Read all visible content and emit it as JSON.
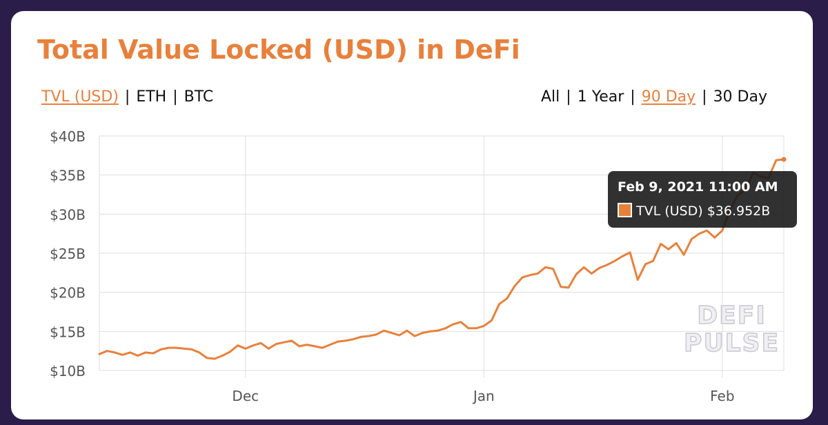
{
  "header": {
    "title": "Total Value Locked (USD) in DeFi"
  },
  "metric_options": [
    "TVL (USD)",
    "ETH",
    "BTC"
  ],
  "metric_active": 0,
  "range_options": [
    "All",
    "1 Year",
    "90 Day",
    "30 Day"
  ],
  "range_active": 2,
  "separator": "|",
  "tooltip": {
    "title": "Feb 9, 2021 11:00 AM",
    "label": "TVL (USD) $36.952B"
  },
  "watermark": {
    "line1": "DEFI",
    "line2": "PULSE"
  },
  "colors": {
    "accent": "#e8803b",
    "grid": "#dddddd",
    "text": "#555555"
  },
  "chart_data": {
    "type": "line",
    "title": "Total Value Locked (USD) in DeFi",
    "xlabel": "",
    "ylabel": "",
    "ylim": [
      10,
      40
    ],
    "yticks": [
      10,
      15,
      20,
      25,
      30,
      35,
      40
    ],
    "ytick_labels": [
      "$10B",
      "$15B",
      "$20B",
      "$25B",
      "$30B",
      "$35B",
      "$40B"
    ],
    "x_range": [
      "2020-11-12",
      "2021-02-09"
    ],
    "xticks": [
      {
        "date": "2020-12-01",
        "label": "Dec"
      },
      {
        "date": "2021-01-01",
        "label": "Jan"
      },
      {
        "date": "2021-02-01",
        "label": "Feb"
      }
    ],
    "grid": true,
    "legend": "none",
    "series": [
      {
        "name": "TVL (USD)",
        "x": [
          "2020-11-12",
          "2020-11-13",
          "2020-11-14",
          "2020-11-15",
          "2020-11-16",
          "2020-11-17",
          "2020-11-18",
          "2020-11-19",
          "2020-11-20",
          "2020-11-21",
          "2020-11-22",
          "2020-11-23",
          "2020-11-24",
          "2020-11-25",
          "2020-11-26",
          "2020-11-27",
          "2020-11-28",
          "2020-11-29",
          "2020-11-30",
          "2020-12-01",
          "2020-12-02",
          "2020-12-03",
          "2020-12-04",
          "2020-12-05",
          "2020-12-06",
          "2020-12-07",
          "2020-12-08",
          "2020-12-09",
          "2020-12-10",
          "2020-12-11",
          "2020-12-12",
          "2020-12-13",
          "2020-12-14",
          "2020-12-15",
          "2020-12-16",
          "2020-12-17",
          "2020-12-18",
          "2020-12-19",
          "2020-12-20",
          "2020-12-21",
          "2020-12-22",
          "2020-12-23",
          "2020-12-24",
          "2020-12-25",
          "2020-12-26",
          "2020-12-27",
          "2020-12-28",
          "2020-12-29",
          "2020-12-30",
          "2020-12-31",
          "2021-01-01",
          "2021-01-02",
          "2021-01-03",
          "2021-01-04",
          "2021-01-05",
          "2021-01-06",
          "2021-01-07",
          "2021-01-08",
          "2021-01-09",
          "2021-01-10",
          "2021-01-11",
          "2021-01-12",
          "2021-01-13",
          "2021-01-14",
          "2021-01-15",
          "2021-01-16",
          "2021-01-17",
          "2021-01-18",
          "2021-01-19",
          "2021-01-20",
          "2021-01-21",
          "2021-01-22",
          "2021-01-23",
          "2021-01-24",
          "2021-01-25",
          "2021-01-26",
          "2021-01-27",
          "2021-01-28",
          "2021-01-29",
          "2021-01-30",
          "2021-01-31",
          "2021-02-01",
          "2021-02-02",
          "2021-02-03",
          "2021-02-04",
          "2021-02-05",
          "2021-02-06",
          "2021-02-07",
          "2021-02-08",
          "2021-02-09"
        ],
        "values": [
          12.1,
          12.5,
          12.3,
          12.0,
          12.3,
          11.9,
          12.3,
          12.2,
          12.7,
          12.9,
          12.9,
          12.8,
          12.7,
          12.3,
          11.6,
          11.5,
          11.9,
          12.4,
          13.2,
          12.8,
          13.2,
          13.5,
          12.8,
          13.4,
          13.6,
          13.8,
          13.1,
          13.3,
          13.1,
          12.9,
          13.3,
          13.7,
          13.8,
          14.0,
          14.3,
          14.4,
          14.6,
          15.1,
          14.8,
          14.5,
          15.1,
          14.4,
          14.8,
          15.0,
          15.1,
          15.4,
          15.9,
          16.2,
          15.4,
          15.4,
          15.7,
          16.4,
          18.5,
          19.2,
          20.8,
          21.9,
          22.2,
          22.4,
          23.2,
          23.0,
          20.7,
          20.6,
          22.3,
          23.2,
          22.4,
          23.1,
          23.5,
          24.0,
          24.6,
          25.1,
          21.6,
          23.6,
          24.0,
          26.2,
          25.5,
          26.3,
          24.8,
          26.8,
          27.5,
          27.9,
          27.0,
          27.9,
          30.6,
          32.4,
          33.1,
          35.3,
          34.8,
          34.6,
          36.9,
          37.0
        ]
      }
    ]
  }
}
